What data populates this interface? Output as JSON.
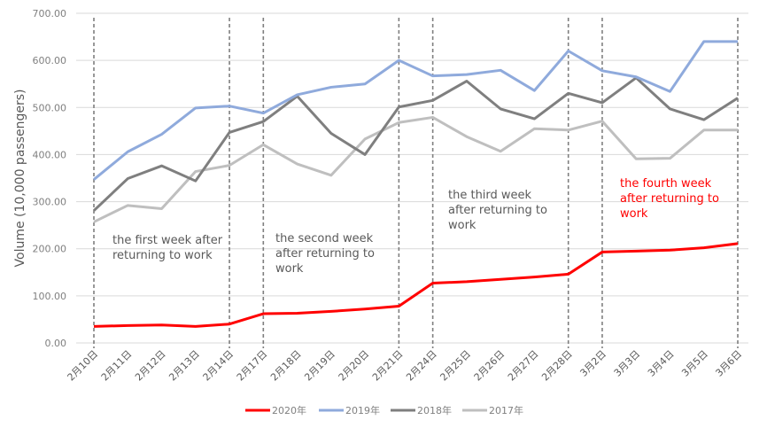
{
  "chart_data": {
    "type": "line",
    "title": "",
    "xlabel": "",
    "ylabel": "Volume  (10,000 passengers)",
    "ylim": [
      0,
      700
    ],
    "yticks": [
      "0.00",
      "100.00",
      "200.00",
      "300.00",
      "400.00",
      "500.00",
      "600.00",
      "700.00"
    ],
    "grid": true,
    "legend_position": "bottom",
    "categories": [
      "2月10日",
      "2月11日",
      "2月12日",
      "2月13日",
      "2月14日",
      "2月17日",
      "2月18日",
      "2月19日",
      "2月20日",
      "2月21日",
      "2月24日",
      "2月25日",
      "2月26日",
      "2月27日",
      "2月28日",
      "3月2日",
      "3月3日",
      "3月4日",
      "3月5日",
      "3月6日"
    ],
    "series": [
      {
        "name": "2020年",
        "color": "#ff0000",
        "values": [
          35,
          37,
          38,
          35,
          40,
          62,
          63,
          67,
          72,
          78,
          127,
          130,
          135,
          140,
          146,
          193,
          195,
          197,
          202,
          211
        ]
      },
      {
        "name": "2019年",
        "color": "#8faadc",
        "values": [
          347,
          406,
          443,
          499,
          503,
          488,
          527,
          543,
          550,
          600,
          567,
          570,
          579,
          536,
          620,
          578,
          565,
          534,
          640,
          640
        ]
      },
      {
        "name": "2018年",
        "color": "#7f7f7f",
        "values": [
          281,
          349,
          376,
          344,
          447,
          470,
          524,
          445,
          400,
          501,
          515,
          556,
          497,
          476,
          530,
          510,
          563,
          497,
          474,
          520
        ]
      },
      {
        "name": "2017年",
        "color": "#bfbfbf",
        "values": [
          257,
          292,
          285,
          364,
          377,
          421,
          380,
          356,
          433,
          468,
          479,
          438,
          407,
          455,
          452,
          471,
          391,
          392,
          452,
          452
        ]
      }
    ],
    "dividers": [
      "2月10日",
      "2月14日",
      "2月17日",
      "2月21日",
      "2月24日",
      "2月28日",
      "3月2日",
      "3月6日"
    ],
    "annotations": [
      {
        "lines": [
          "the first week after",
          "returning to work"
        ],
        "color": "#595959"
      },
      {
        "lines": [
          "the second week",
          "after returning to",
          "work"
        ],
        "color": "#595959"
      },
      {
        "lines": [
          "the third week",
          "after returning to",
          "work"
        ],
        "color": "#595959"
      },
      {
        "lines": [
          "the fourth week",
          "after returning to",
          "work"
        ],
        "color": "#ff0000"
      }
    ]
  }
}
